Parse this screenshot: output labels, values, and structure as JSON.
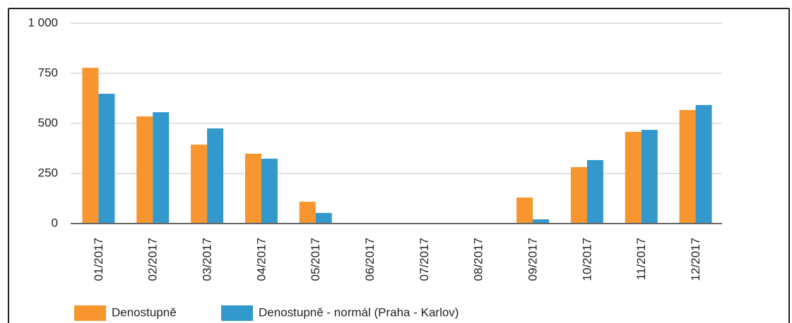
{
  "chart_data": {
    "type": "bar",
    "categories": [
      "01/2017",
      "02/2017",
      "03/2017",
      "04/2017",
      "05/2017",
      "06/2017",
      "07/2017",
      "08/2017",
      "09/2017",
      "10/2017",
      "11/2017",
      "12/2017"
    ],
    "series": [
      {
        "name": "Denostupně",
        "color": "#f7962e",
        "values": [
          778,
          535,
          394,
          349,
          109,
          0,
          0,
          0,
          130,
          282,
          458,
          567
        ]
      },
      {
        "name": "Denostupně - normál (Praha - Karlov)",
        "color": "#3399cc",
        "values": [
          648,
          556,
          475,
          324,
          53,
          0,
          0,
          0,
          21,
          317,
          468,
          592
        ]
      }
    ],
    "ylim": [
      0,
      1000
    ],
    "yticks": [
      0,
      250,
      500,
      750,
      {
        "value": 1000,
        "label": "1 000"
      }
    ],
    "grid": true,
    "legend": "bottom"
  }
}
